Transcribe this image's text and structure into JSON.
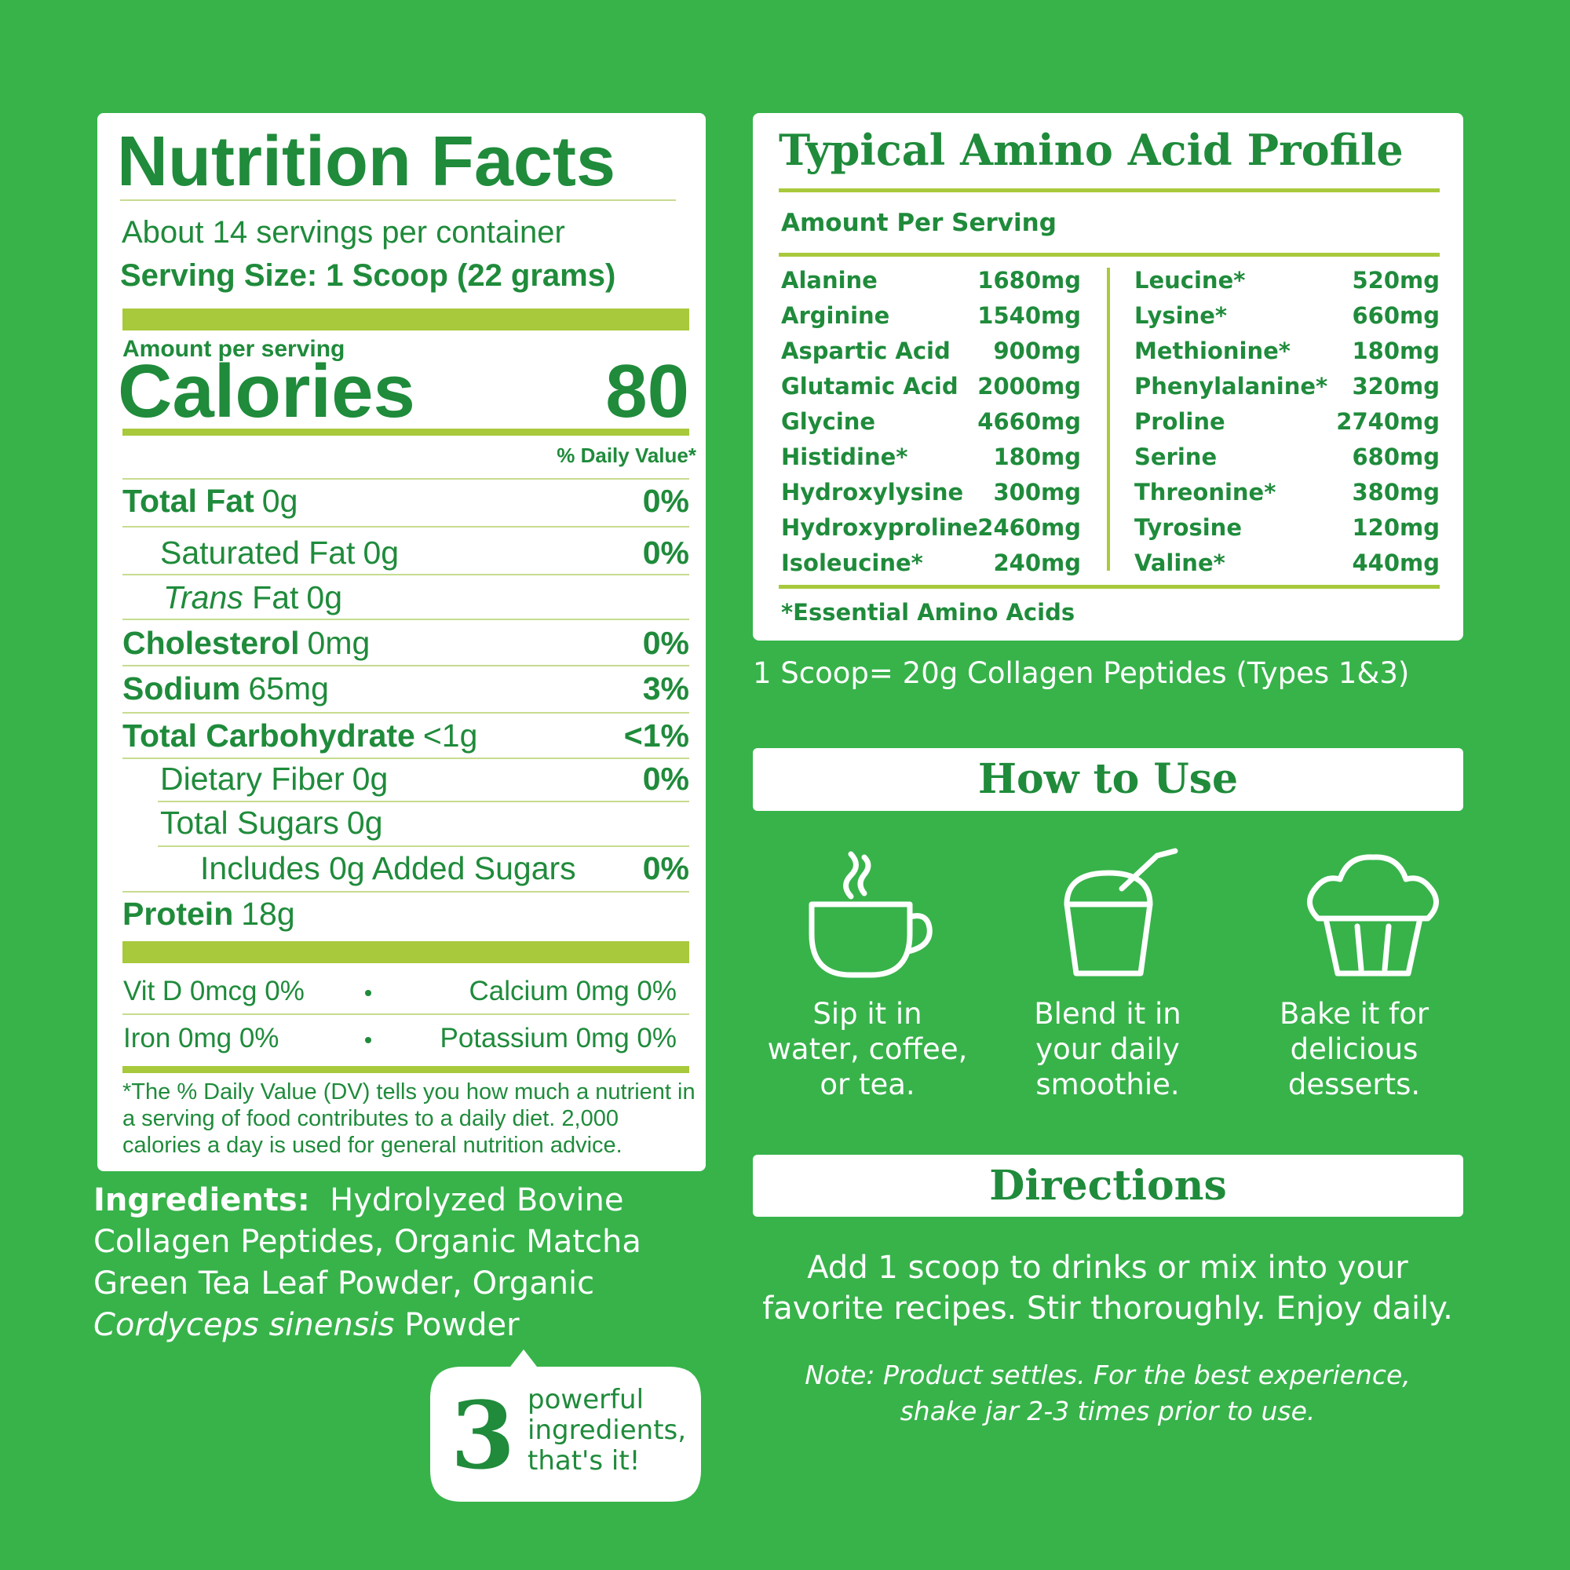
{
  "nutrition_facts": {
    "title": "Nutrition Facts",
    "servings": "About 14 servings per container",
    "serving_size": "Serving Size: 1 Scoop (22 grams)",
    "amount_per_serving": "Amount per serving",
    "calories_label": "Calories",
    "calories": 80,
    "daily_value_header": "% Daily Value*",
    "rows": [
      {
        "name": "Total Fat",
        "amount": "0g",
        "dv": "0%"
      },
      {
        "name": "Saturated Fat",
        "amount": "0g",
        "dv": "0%"
      },
      {
        "name_italic": "Trans",
        "name": "Fat",
        "amount": "0g"
      },
      {
        "name": "Cholesterol",
        "amount": "0mg",
        "dv": "0%"
      },
      {
        "name": "Sodium",
        "amount": "65mg",
        "dv": "3%"
      },
      {
        "name": "Total Carbohydrate",
        "amount": "<1g",
        "dv": "<1%"
      },
      {
        "name": "Dietary Fiber",
        "amount": "0g",
        "dv": "0%"
      },
      {
        "name": "Total Sugars",
        "amount": "0g"
      },
      {
        "name": "Includes 0g Added Sugars",
        "dv": "0%"
      },
      {
        "name": "Protein",
        "amount": "18g"
      }
    ],
    "vitamins": [
      "Vit D 0mcg 0%",
      "Calcium 0mg 0%",
      "Iron 0mg 0%",
      "Potassium 0mg 0%"
    ],
    "footnote": "*The % Daily Value (DV) tells you how much a nutrient in a serving of food contributes to a daily diet. 2,000 calories a day is used for general nutrition advice."
  },
  "ingredients": {
    "label": "Ingredients:",
    "text": "Hydrolyzed Bovine Collagen Peptides, Organic Matcha Green Tea Leaf Powder, Organic",
    "italic": "Cordyceps sinensis",
    "end": "Powder"
  },
  "badge": {
    "number": "3",
    "lines": [
      "powerful",
      "ingredients,",
      "that's it!"
    ]
  },
  "amino_acids": {
    "title": "Typical Amino Acid Profile",
    "subtitle": "Amount Per Serving",
    "columns": [
      [
        {
          "name": "Alanine",
          "amount": "1680mg"
        },
        {
          "name": "Arginine",
          "amount": "1540mg"
        },
        {
          "name": "Aspartic Acid",
          "amount": "900mg"
        },
        {
          "name": "Glutamic Acid",
          "amount": "2000mg"
        },
        {
          "name": "Glycine",
          "amount": "4660mg"
        },
        {
          "name": "Histidine*",
          "amount": "180mg"
        },
        {
          "name": "Hydroxylysine",
          "amount": "300mg"
        },
        {
          "name": "Hydroxyproline",
          "amount": "2460mg"
        },
        {
          "name": "Isoleucine*",
          "amount": "240mg"
        }
      ],
      [
        {
          "name": "Leucine*",
          "amount": "520mg"
        },
        {
          "name": "Lysine*",
          "amount": "660mg"
        },
        {
          "name": "Methionine*",
          "amount": "180mg"
        },
        {
          "name": "Phenylalanine*",
          "amount": "320mg"
        },
        {
          "name": "Proline",
          "amount": "2740mg"
        },
        {
          "name": "Serine",
          "amount": "680mg"
        },
        {
          "name": "Threonine*",
          "amount": "380mg"
        },
        {
          "name": "Tyrosine",
          "amount": "120mg"
        },
        {
          "name": "Valine*",
          "amount": "440mg"
        }
      ]
    ],
    "footnote": "*Essential Amino Acids"
  },
  "scoop_note": "1 Scoop= 20g Collagen Peptides (Types 1&3)",
  "how_to_use": {
    "title": "How to Use",
    "uses": [
      [
        "Sip it in",
        "water, coffee,",
        "or tea."
      ],
      [
        "Blend it in",
        "your daily",
        "smoothie."
      ],
      [
        "Bake it for",
        "delicious",
        "desserts."
      ]
    ]
  },
  "directions": {
    "title": "Directions",
    "lines": [
      "Add 1 scoop to drinks or mix into your",
      "favorite recipes. Stir thoroughly. Enjoy daily."
    ],
    "note": [
      "Note: Product settles. For the best experience,",
      "shake jar 2-3 times prior to use."
    ]
  }
}
